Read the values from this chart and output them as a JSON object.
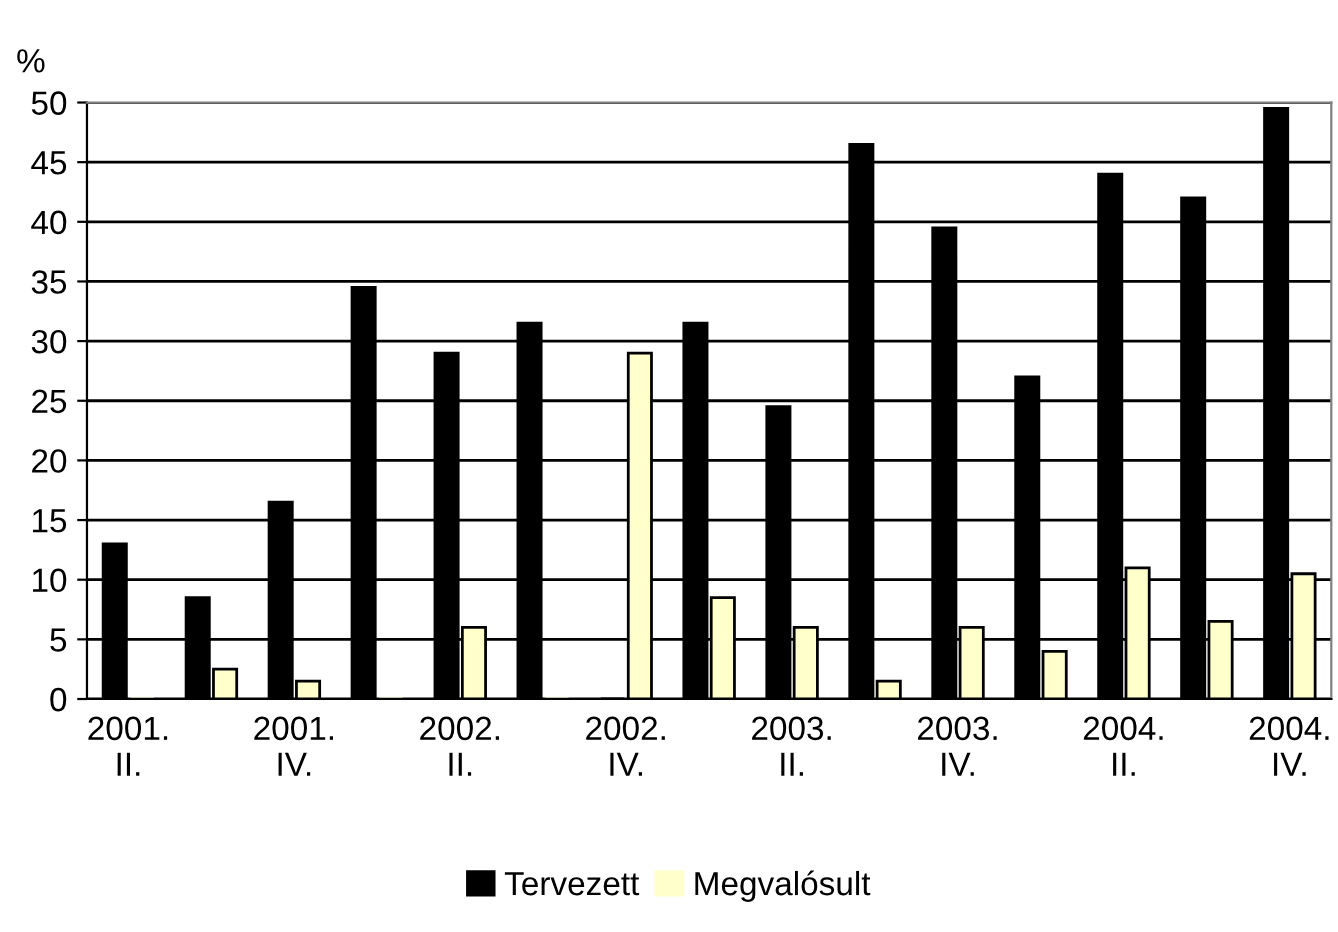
{
  "chart_data": {
    "type": "bar",
    "ylabel": "%",
    "categories": [
      "2001.\nII.",
      null,
      "2001.\nIV.",
      null,
      "2002.\nII.",
      null,
      "2002.\nIV.",
      null,
      "2003.\nII.",
      null,
      "2003.\nIV.",
      null,
      "2004.\nII.",
      null,
      "2004.\nIV."
    ],
    "series": [
      {
        "name": "Tervezett",
        "color": "#000000",
        "values": [
          13,
          8.5,
          16.5,
          34.5,
          29,
          31.5,
          0,
          31.5,
          24.5,
          46.5,
          39.5,
          27,
          44,
          42,
          49.5
        ]
      },
      {
        "name": "Megvalósult",
        "color": "#ffffcc",
        "values": [
          0,
          2.5,
          1.5,
          0,
          6,
          0,
          29,
          8.5,
          6,
          1.5,
          6,
          4,
          11,
          6.5,
          10.5
        ]
      }
    ],
    "ylim": [
      0,
      50
    ],
    "yticks": [
      0,
      5,
      10,
      15,
      20,
      25,
      30,
      35,
      40,
      45,
      50
    ],
    "grid": "y",
    "legend": "bottom"
  }
}
